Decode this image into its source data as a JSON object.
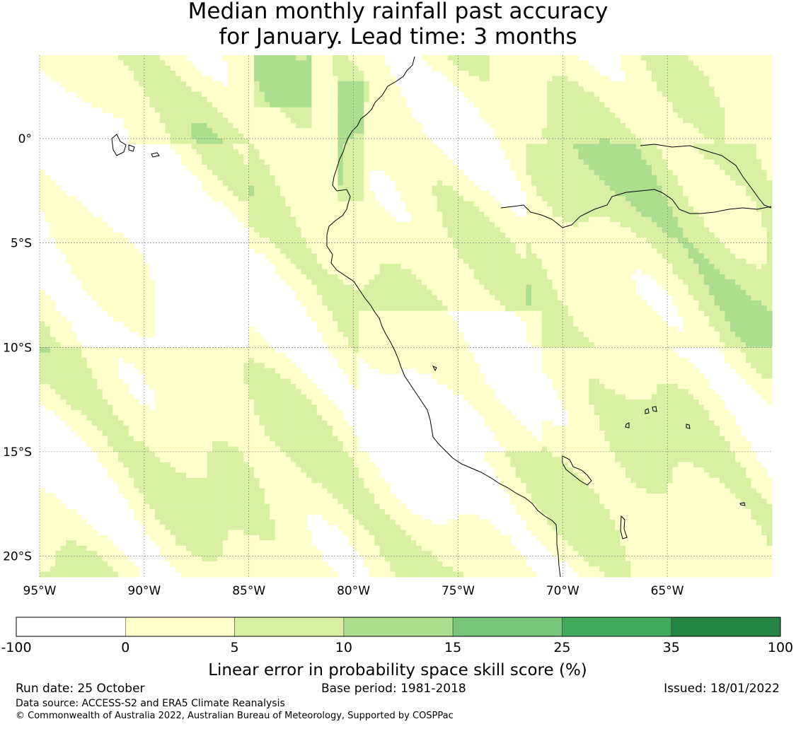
{
  "title_line1": "Median monthly rainfall past accuracy",
  "title_line2": "for January. Lead time: 3 months",
  "map": {
    "lon_range": [
      -95,
      -60
    ],
    "lat_range": [
      -21,
      4
    ],
    "lon_ticks": [
      {
        "value": -95,
        "label": "95°W"
      },
      {
        "value": -90,
        "label": "90°W"
      },
      {
        "value": -85,
        "label": "85°W"
      },
      {
        "value": -80,
        "label": "80°W"
      },
      {
        "value": -75,
        "label": "75°W"
      },
      {
        "value": -70,
        "label": "70°W"
      },
      {
        "value": -65,
        "label": "65°W"
      }
    ],
    "lat_ticks": [
      {
        "value": 0,
        "label": "0°"
      },
      {
        "value": -5,
        "label": "5°S"
      },
      {
        "value": -10,
        "label": "10°S"
      },
      {
        "value": -15,
        "label": "15°S"
      },
      {
        "value": -20,
        "label": "20°S"
      }
    ],
    "grid": true
  },
  "colorbar": {
    "label": "Linear error in probability space skill score (%)",
    "boundaries": [
      {
        "value": "-100",
        "label": "-100"
      },
      {
        "value": "0",
        "label": "0"
      },
      {
        "value": "5",
        "label": "5"
      },
      {
        "value": "10",
        "label": "10"
      },
      {
        "value": "15",
        "label": "15"
      },
      {
        "value": "25",
        "label": "25"
      },
      {
        "value": "35",
        "label": "35"
      },
      {
        "value": "100",
        "label": "100"
      }
    ],
    "colors": [
      "#ffffff",
      "#ffffcc",
      "#d9f0a3",
      "#addd8e",
      "#78c679",
      "#41ab5d",
      "#238443"
    ]
  },
  "footer": {
    "run_date": "Run date: 25 October",
    "base_period": "Base period: 1981-2018",
    "issued": "Issued: 18/01/2022",
    "data_source": "Data source: ACCESS-S2 and ERA5 Climate Reanalysis",
    "copyright": "© Commonwealth of Australia 2022, Australian Bureau of Meteorology, Supported by COSPPac"
  }
}
